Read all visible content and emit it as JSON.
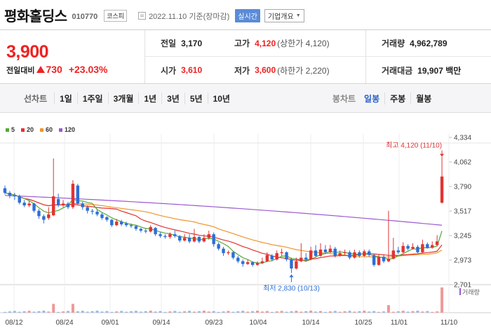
{
  "header": {
    "stock_name": "평화홀딩스",
    "stock_code": "010770",
    "market": "코스피",
    "date": "2022.11.10 기준(장마감)",
    "realtime_label": "실시간",
    "company_label": "기업개요"
  },
  "price": {
    "current": "3,900",
    "change_label": "전일대비",
    "change_amount": "730",
    "change_percent": "+23.03%"
  },
  "stats": {
    "prev_label": "전일",
    "prev_value": "3,170",
    "high_label": "고가",
    "high_value": "4,120",
    "high_sub": "(상한가 4,120)",
    "volume_label": "거래량",
    "volume_value": "4,962,789",
    "open_label": "시가",
    "open_value": "3,610",
    "low_label": "저가",
    "low_value": "3,600",
    "low_sub": "(하한가 2,220)",
    "amount_label": "거래대금",
    "amount_value": "19,907 백만"
  },
  "period_bar": {
    "line_title": "선차트",
    "line_periods": [
      "1일",
      "1주일",
      "3개월",
      "1년",
      "3년",
      "5년",
      "10년"
    ],
    "candle_title": "봉차트",
    "candle_periods": [
      "일봉",
      "주봉",
      "월봉"
    ],
    "active_candle": "일봉"
  },
  "legend": [
    {
      "label": "5",
      "color": "#55a834"
    },
    {
      "label": "20",
      "color": "#e23333"
    },
    {
      "label": "60",
      "color": "#f0942b"
    },
    {
      "label": "120",
      "color": "#9c59cf"
    }
  ],
  "chart_data": {
    "type": "candlestick",
    "y_ticks": [
      "4,334",
      "4,062",
      "3,790",
      "3,517",
      "3,245",
      "2,973",
      "2,701"
    ],
    "ylim": [
      2701,
      4334
    ],
    "x_ticks": [
      "08/12",
      "08/24",
      "09/01",
      "09/14",
      "09/23",
      "10/04",
      "10/14",
      "10/25",
      "11/01",
      "11/10"
    ],
    "max_annotation": "최고 4,120 (11/10)",
    "min_annotation": "최저 2,830 (10/13)",
    "volume_label": "거래량",
    "up_color": "#e23333",
    "down_color": "#2d6fd6",
    "ma_colors": {
      "ma5": "#55a834",
      "ma20": "#e23333",
      "ma60": "#f0942b",
      "ma120": "#9c59cf"
    }
  }
}
